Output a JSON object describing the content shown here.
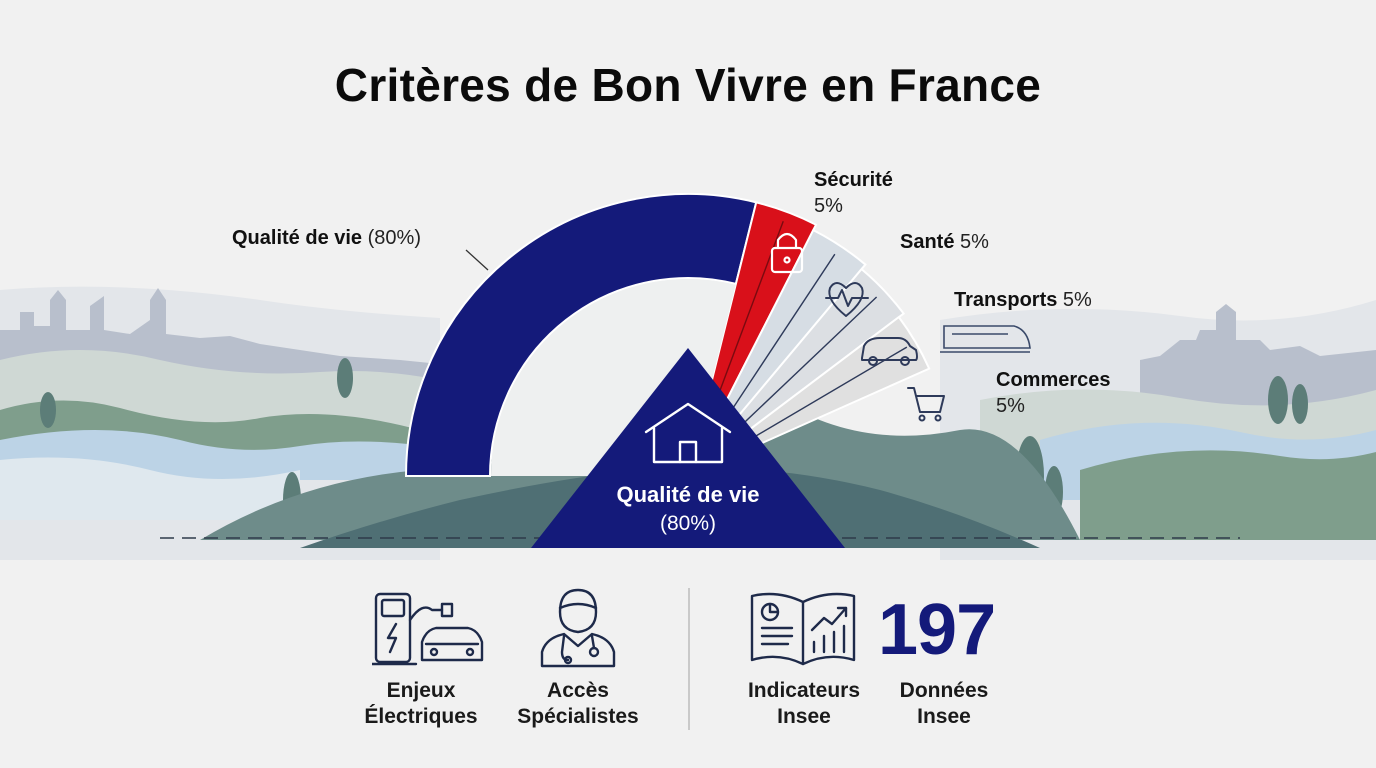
{
  "title": "Critères de Bon Vivre en France",
  "colors": {
    "primary": "#141a7a",
    "accent": "#d9101a",
    "muted1": "#d6dde4",
    "muted2": "#dcdfe3",
    "muted3": "#e0e0e0",
    "hills": "#6e8c8a",
    "river": "#bcd3e6"
  },
  "chart_data": {
    "type": "pie",
    "layout": "half-donut",
    "slices": [
      {
        "name": "Qualité de vie",
        "value": 80,
        "label": "Qualité de vie",
        "value_label": "(80%)",
        "icon": "",
        "color": "#141a7a"
      },
      {
        "name": "Sécurité",
        "value": 5,
        "label": "Sécurité",
        "value_label": "5%",
        "icon": "padlock-icon",
        "color": "#d9101a"
      },
      {
        "name": "Santé",
        "value": 5,
        "label": "Santé",
        "value_label": "5%",
        "icon": "heart-pulse-icon",
        "color": "#d6dde4"
      },
      {
        "name": "Transports",
        "value": 5,
        "label": "Transports",
        "value_label": "5%",
        "icon": "car-icon",
        "color": "#dcdfe3"
      },
      {
        "name": "Commerces",
        "value": 5,
        "label": "Commerces",
        "value_label": "5%",
        "icon": "cart-icon",
        "color": "#e0e0e0"
      }
    ],
    "center": {
      "label": "Qualité de vie",
      "value_label": "(80%)",
      "icon": "house-icon"
    }
  },
  "bottom": {
    "items": [
      {
        "icon": "ev-charger-car-icon",
        "line1": "Enjeux",
        "line2": "Électriques"
      },
      {
        "icon": "doctor-icon",
        "line1": "Accès",
        "line2": "Spécialistes"
      },
      {
        "icon": "open-book-chart-icon",
        "line1": "Indicateurs",
        "line2": "Insee"
      },
      {
        "icon": "",
        "line1": "Données",
        "line2": "Insee"
      }
    ],
    "big_number": "197"
  }
}
